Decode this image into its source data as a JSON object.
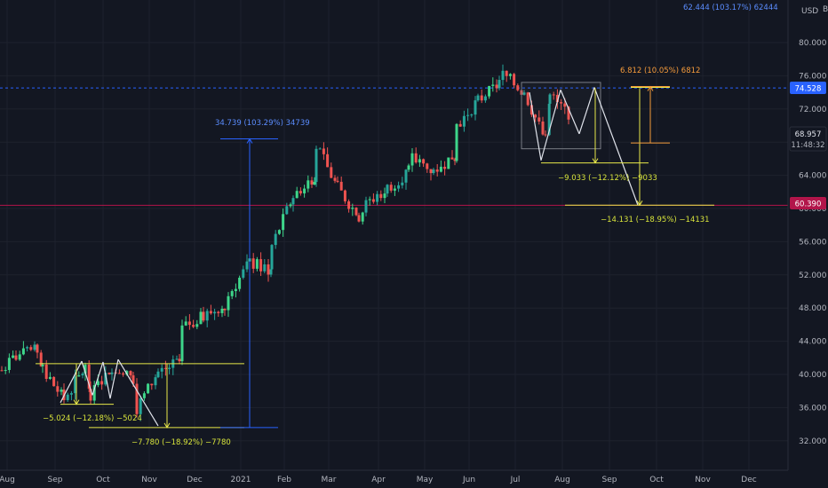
{
  "header": {
    "currency": "USD",
    "top_readout": "62.444 (103.17%) 62444",
    "clipped_mark": "B"
  },
  "colors": {
    "background": "#131722",
    "grid": "#1e222d",
    "up": "#26a69a",
    "up_light": "#3ed68a",
    "down": "#ef5350",
    "blue": "#2962ff",
    "blue_text": "#5b8dff",
    "yellow": "#e8e84a",
    "yellow_text": "#d7e33b",
    "orange": "#f59b3b",
    "crimson": "#b2154a",
    "white_line": "#e0e3eb"
  },
  "price_scale": {
    "ticks": [
      "80.000",
      "76.000",
      "72.000",
      "68.000",
      "64.000",
      "60.000",
      "56.000",
      "52.000",
      "48.000",
      "44.000",
      "40.000",
      "36.000",
      "32.000"
    ],
    "current_price": "68.957",
    "countdown": "11:48:32",
    "line_price_blue": "74.528",
    "line_price_red": "60.390"
  },
  "time_scale": {
    "ticks": [
      "Aug",
      "Sep",
      "Oct",
      "Nov",
      "Dec",
      "2021",
      "Feb",
      "Mar",
      "Apr",
      "May",
      "Jun",
      "Jul",
      "Aug",
      "Sep",
      "Oct",
      "Nov",
      "Dec"
    ]
  },
  "annotations": {
    "measure_big": "34.739 (103.29%) 34739",
    "measure_left_small": "−5.024 (−12.18%) −5024",
    "measure_left_big": "−7.780 (−18.92%) −7780",
    "measure_orange": "6.812 (10.05%) 6812",
    "measure_right_small": "−9.033 (−12.12%) −9033",
    "measure_right_big": "−14.131 (−18.95%) −14131"
  },
  "chart_data": {
    "type": "candlestick",
    "x_categories": [
      "Aug",
      "Sep",
      "Oct",
      "Nov",
      "Dec",
      "2021",
      "Feb",
      "Mar",
      "Apr",
      "May",
      "Jun",
      "Jul",
      "Aug",
      "Sep",
      "Oct",
      "Nov",
      "Dec"
    ],
    "ylim": [
      29.0,
      85.0
    ],
    "y_ticks": [
      32,
      36,
      40,
      44,
      48,
      52,
      56,
      60,
      64,
      68,
      72,
      76,
      80
    ],
    "horizontal_lines": [
      {
        "price": 74.528,
        "color": "blue",
        "style": "dashed"
      },
      {
        "price": 60.39,
        "color": "crimson",
        "style": "solid"
      }
    ],
    "price_path": [
      [
        "Aug",
        40.5
      ],
      [
        "Aug",
        42.2
      ],
      [
        "Aug",
        42.9
      ],
      [
        "Sep",
        40.5
      ],
      [
        "Sep",
        37.0
      ],
      [
        "Sep",
        40.8
      ],
      [
        "Oct",
        37.5
      ],
      [
        "Oct",
        41.0
      ],
      [
        "Oct",
        39.5
      ],
      [
        "Nov",
        36.0
      ],
      [
        "Nov",
        40.3
      ],
      [
        "Nov",
        41.5
      ],
      [
        "Dec",
        45.5
      ],
      [
        "Dec",
        47.0
      ],
      [
        "Dec",
        48.5
      ],
      [
        "2021",
        49.5
      ],
      [
        "2021",
        53.5
      ],
      [
        "2021",
        52.5
      ],
      [
        "Feb",
        55.5
      ],
      [
        "Feb",
        61.5
      ],
      [
        "Feb",
        64.0
      ],
      [
        "Mar",
        67.5
      ],
      [
        "Mar",
        62.5
      ],
      [
        "Mar",
        59.0
      ],
      [
        "Apr",
        60.5
      ],
      [
        "Apr",
        62.5
      ],
      [
        "Apr",
        64.5
      ],
      [
        "May",
        66.0
      ],
      [
        "May",
        64.5
      ],
      [
        "May",
        66.5
      ],
      [
        "Jun",
        70.0
      ],
      [
        "Jun",
        73.0
      ],
      [
        "Jun",
        75.0
      ],
      [
        "Jul",
        76.2
      ],
      [
        "Jul",
        74.0
      ],
      [
        "Jul",
        68.2
      ],
      [
        "Aug",
        73.5
      ],
      [
        "Aug",
        68.96
      ]
    ]
  }
}
